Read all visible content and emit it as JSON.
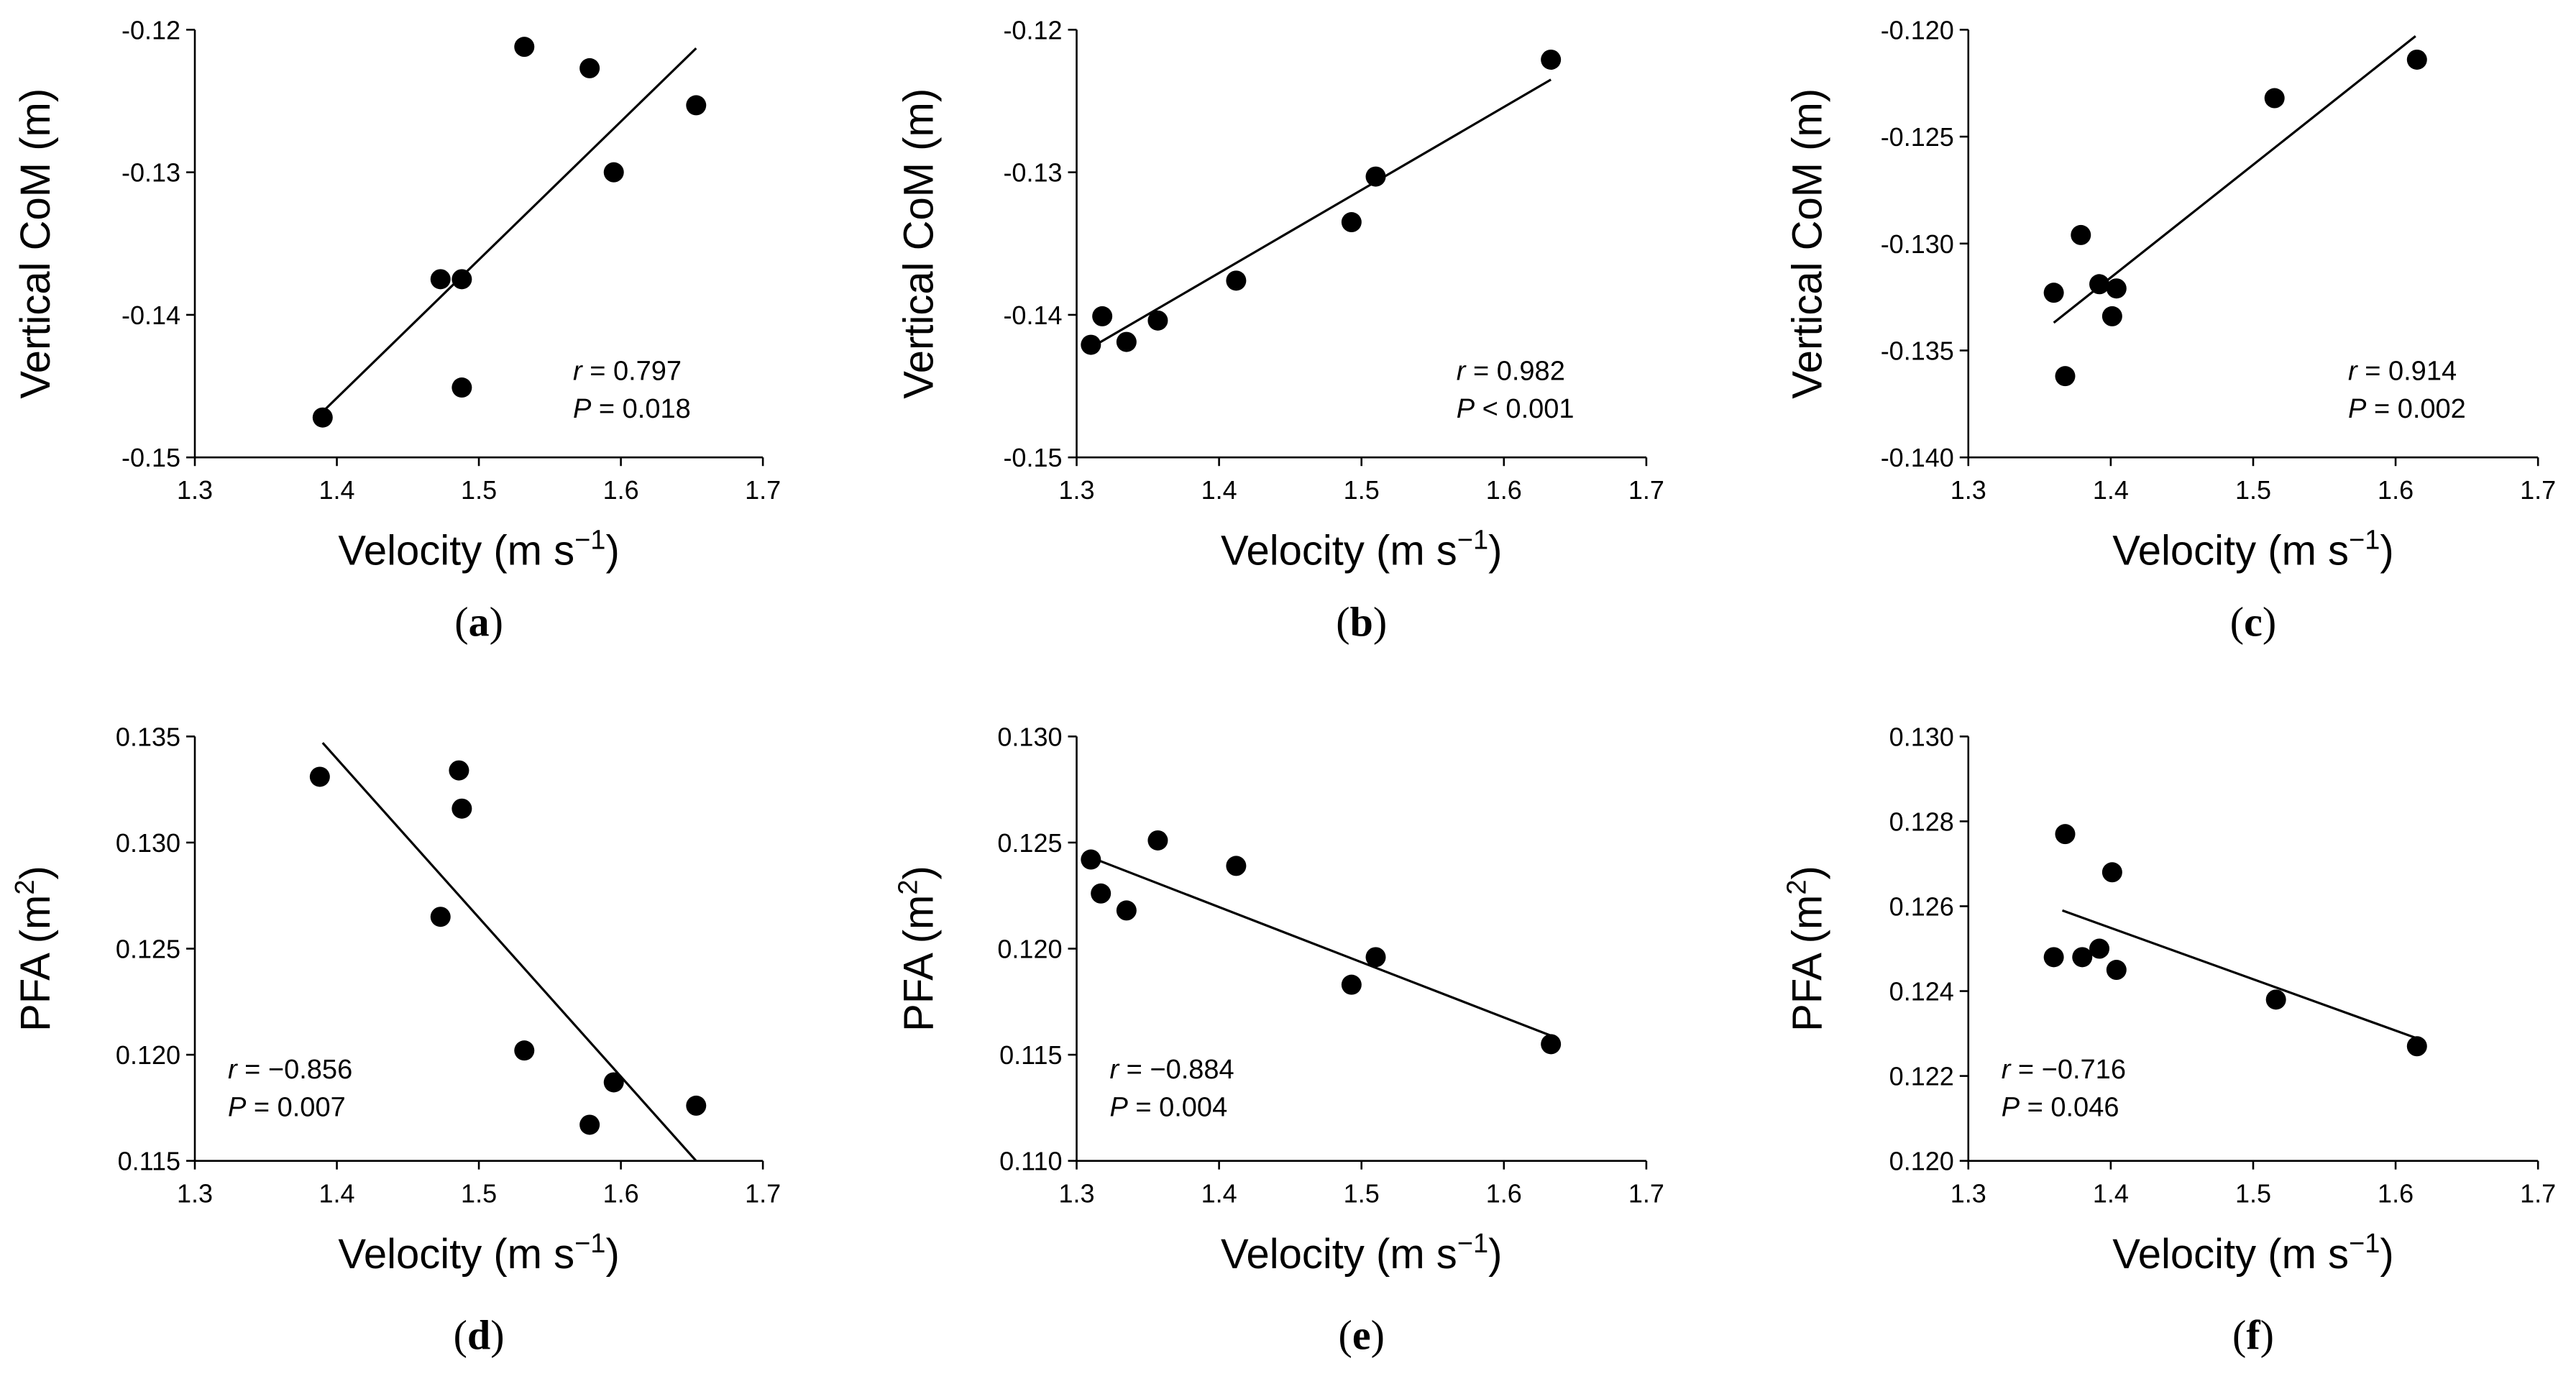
{
  "chart_data": [
    {
      "type": "scatter",
      "panel_label": "a",
      "xlabel": "Velocity (m s",
      "xlabel_sup": "−1",
      "xlabel_close": ")",
      "ylabel": "Vertical CoM (m)",
      "ylabel_sup": "",
      "ylabel_close": "",
      "xlim": [
        1.3,
        1.7
      ],
      "ylim": [
        -0.15,
        -0.12
      ],
      "xticks": [
        1.3,
        1.4,
        1.5,
        1.6,
        1.7
      ],
      "xtick_labels": [
        "1.3",
        "1.4",
        "1.5",
        "1.6",
        "1.7"
      ],
      "yticks": [
        -0.15,
        -0.14,
        -0.13,
        -0.12
      ],
      "ytick_labels": [
        "-0.15",
        "-0.14",
        "-0.13",
        "-0.12"
      ],
      "x": [
        1.39,
        1.473,
        1.488,
        1.488,
        1.532,
        1.578,
        1.595,
        1.653
      ],
      "y": [
        -0.1472,
        -0.1375,
        -0.1375,
        -0.1451,
        -0.1212,
        -0.1227,
        -0.13,
        -0.1253
      ],
      "fit_x": [
        1.39,
        1.653
      ],
      "fit_y": [
        -0.1468,
        -0.1213
      ],
      "stats_r_label": "r",
      "stats_r_value": " = 0.797",
      "stats_p_label": "P",
      "stats_p_value": " = 0.018",
      "stats_position": "bottom-right"
    },
    {
      "type": "scatter",
      "panel_label": "b",
      "xlabel": "Velocity (m s",
      "xlabel_sup": "−1",
      "xlabel_close": ")",
      "ylabel": "Vertical CoM (m)",
      "ylabel_sup": "",
      "ylabel_close": "",
      "xlim": [
        1.3,
        1.7
      ],
      "ylim": [
        -0.15,
        -0.12
      ],
      "xticks": [
        1.3,
        1.4,
        1.5,
        1.6,
        1.7
      ],
      "xtick_labels": [
        "1.3",
        "1.4",
        "1.5",
        "1.6",
        "1.7"
      ],
      "yticks": [
        -0.15,
        -0.14,
        -0.13,
        -0.12
      ],
      "ytick_labels": [
        "-0.15",
        "-0.14",
        "-0.13",
        "-0.12"
      ],
      "x": [
        1.31,
        1.318,
        1.335,
        1.357,
        1.412,
        1.493,
        1.51,
        1.633
      ],
      "y": [
        -0.1421,
        -0.1401,
        -0.1419,
        -0.1404,
        -0.1376,
        -0.1335,
        -0.1303,
        -0.1221
      ],
      "fit_x": [
        1.31,
        1.633
      ],
      "fit_y": [
        -0.1423,
        -0.1235
      ],
      "stats_r_label": "r",
      "stats_r_value": " = 0.982",
      "stats_p_label": "P",
      "stats_p_value": " < 0.001",
      "stats_position": "bottom-right"
    },
    {
      "type": "scatter",
      "panel_label": "c",
      "xlabel": "Velocity (m s",
      "xlabel_sup": "−1",
      "xlabel_close": ")",
      "ylabel": "Vertical CoM (m)",
      "ylabel_sup": "",
      "ylabel_close": "",
      "xlim": [
        1.3,
        1.7
      ],
      "ylim": [
        -0.14,
        -0.12
      ],
      "xticks": [
        1.3,
        1.4,
        1.5,
        1.6,
        1.7
      ],
      "xtick_labels": [
        "1.3",
        "1.4",
        "1.5",
        "1.6",
        "1.7"
      ],
      "yticks": [
        -0.14,
        -0.135,
        -0.13,
        -0.125,
        -0.12
      ],
      "ytick_labels": [
        "-0.140",
        "-0.135",
        "-0.130",
        "-0.125",
        "-0.120"
      ],
      "x": [
        1.36,
        1.368,
        1.379,
        1.392,
        1.401,
        1.404,
        1.515,
        1.615
      ],
      "y": [
        -0.1323,
        -0.1362,
        -0.1296,
        -0.1319,
        -0.1334,
        -0.1321,
        -0.1232,
        -0.1214
      ],
      "fit_x": [
        1.36,
        1.614
      ],
      "fit_y": [
        -0.1337,
        -0.1203
      ],
      "stats_r_label": "r",
      "stats_r_value": " = 0.914",
      "stats_p_label": "P",
      "stats_p_value": " = 0.002",
      "stats_position": "bottom-right"
    },
    {
      "type": "scatter",
      "panel_label": "d",
      "xlabel": "Velocity (m s",
      "xlabel_sup": "−1",
      "xlabel_close": ")",
      "ylabel": "PFA  (m",
      "ylabel_sup": "2",
      "ylabel_close": ")",
      "xlim": [
        1.3,
        1.7
      ],
      "ylim": [
        0.115,
        0.135
      ],
      "xticks": [
        1.3,
        1.4,
        1.5,
        1.6,
        1.7
      ],
      "xtick_labels": [
        "1.3",
        "1.4",
        "1.5",
        "1.6",
        "1.7"
      ],
      "yticks": [
        0.115,
        0.12,
        0.125,
        0.13,
        0.135
      ],
      "ytick_labels": [
        "0.115",
        "0.120",
        "0.125",
        "0.130",
        "0.135"
      ],
      "x": [
        1.388,
        1.473,
        1.486,
        1.488,
        1.532,
        1.578,
        1.595,
        1.653
      ],
      "y": [
        0.1331,
        0.1265,
        0.1334,
        0.1316,
        0.1202,
        0.1167,
        0.1187,
        0.1176
      ],
      "fit_x": [
        1.39,
        1.653
      ],
      "fit_y": [
        0.1347,
        0.115
      ],
      "stats_r_label": "r",
      "stats_r_value": " = −0.856",
      "stats_p_label": "P",
      "stats_p_value": " = 0.007",
      "stats_position": "bottom-left"
    },
    {
      "type": "scatter",
      "panel_label": "e",
      "xlabel": "Velocity (m s",
      "xlabel_sup": "−1",
      "xlabel_close": ")",
      "ylabel": "PFA  (m",
      "ylabel_sup": "2",
      "ylabel_close": ")",
      "xlim": [
        1.3,
        1.7
      ],
      "ylim": [
        0.11,
        0.13
      ],
      "xticks": [
        1.3,
        1.4,
        1.5,
        1.6,
        1.7
      ],
      "xtick_labels": [
        "1.3",
        "1.4",
        "1.5",
        "1.6",
        "1.7"
      ],
      "yticks": [
        0.11,
        0.115,
        0.12,
        0.125,
        0.13
      ],
      "ytick_labels": [
        "0.110",
        "0.115",
        "0.120",
        "0.125",
        "0.130"
      ],
      "x": [
        1.31,
        1.317,
        1.335,
        1.357,
        1.412,
        1.493,
        1.51,
        1.633
      ],
      "y": [
        0.1242,
        0.1226,
        0.1218,
        0.1251,
        0.1239,
        0.1183,
        0.1196,
        0.1155
      ],
      "fit_x": [
        1.31,
        1.633
      ],
      "fit_y": [
        0.1243,
        0.1159
      ],
      "stats_r_label": "r",
      "stats_r_value": " = −0.884",
      "stats_p_label": "P",
      "stats_p_value": " = 0.004",
      "stats_position": "bottom-left"
    },
    {
      "type": "scatter",
      "panel_label": "f",
      "xlabel": "Velocity (m s",
      "xlabel_sup": "−1",
      "xlabel_close": ")",
      "ylabel": "PFA  (m",
      "ylabel_sup": "2",
      "ylabel_close": ")",
      "xlim": [
        1.3,
        1.7
      ],
      "ylim": [
        0.12,
        0.13
      ],
      "xticks": [
        1.3,
        1.4,
        1.5,
        1.6,
        1.7
      ],
      "xtick_labels": [
        "1.3",
        "1.4",
        "1.5",
        "1.6",
        "1.7"
      ],
      "yticks": [
        0.12,
        0.122,
        0.124,
        0.126,
        0.128,
        0.13
      ],
      "ytick_labels": [
        "0.120",
        "0.122",
        "0.124",
        "0.126",
        "0.128",
        "0.130"
      ],
      "x": [
        1.36,
        1.368,
        1.38,
        1.392,
        1.401,
        1.404,
        1.516,
        1.615
      ],
      "y": [
        0.1248,
        0.1277,
        0.1248,
        0.125,
        0.1268,
        0.1245,
        0.1238,
        0.1227
      ],
      "fit_x": [
        1.366,
        1.614
      ],
      "fit_y": [
        0.1259,
        0.1229
      ],
      "stats_r_label": "r",
      "stats_r_value": " = −0.716",
      "stats_p_label": "P",
      "stats_p_value": " = 0.046",
      "stats_position": "bottom-left"
    }
  ]
}
